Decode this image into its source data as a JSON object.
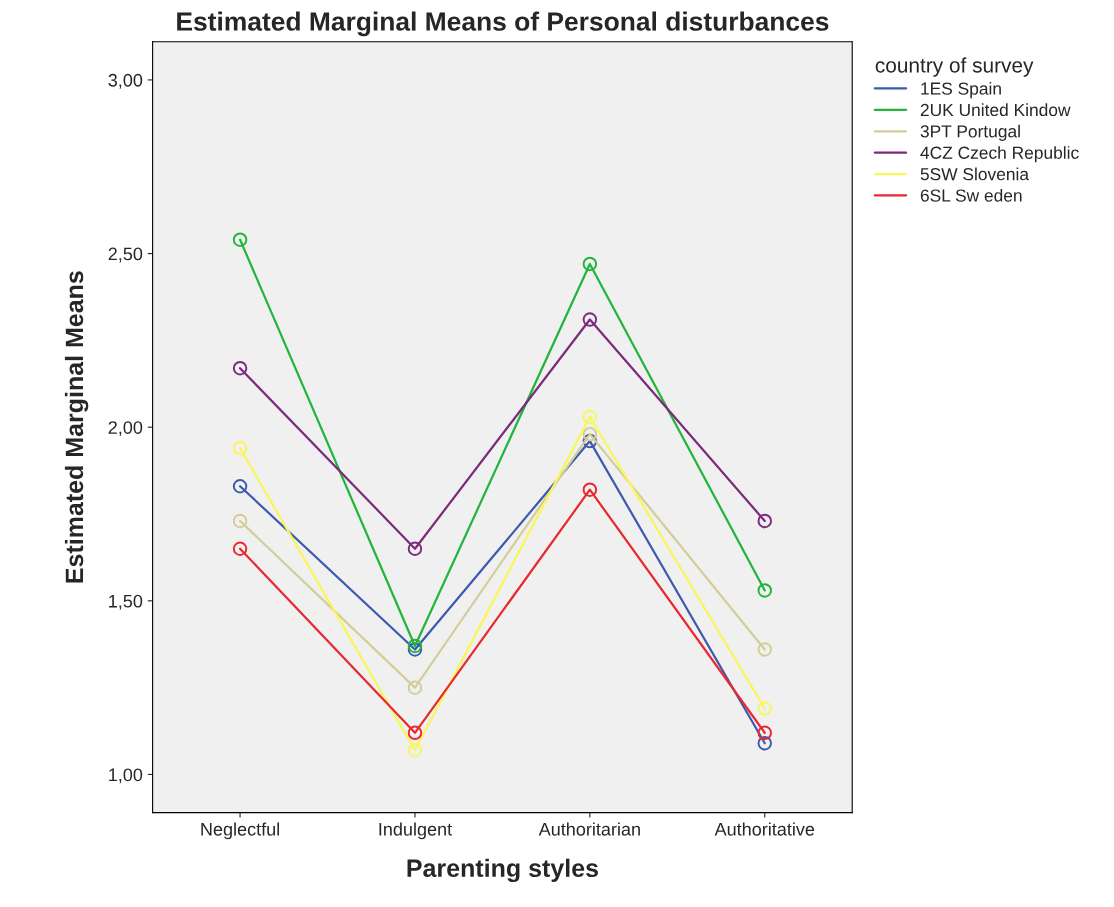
{
  "chart_data": {
    "type": "line",
    "title": "Estimated Marginal Means of Personal disturbances",
    "xlabel": "Parenting styles",
    "ylabel": "Estimated Marginal Means",
    "legend_title": "country of survey",
    "categories": [
      "Neglectful",
      "Indulgent",
      "Authoritarian",
      "Authoritative"
    ],
    "series": [
      {
        "name": "1ES Spain",
        "color": "#3d5aae",
        "values": [
          1.83,
          1.36,
          1.96,
          1.09
        ]
      },
      {
        "name": "2UK United Kindow",
        "color": "#21b53a",
        "values": [
          2.54,
          1.37,
          2.47,
          1.53
        ]
      },
      {
        "name": "3PT Portugal",
        "color": "#d3ce97",
        "values": [
          1.73,
          1.25,
          1.98,
          1.36
        ]
      },
      {
        "name": "4CZ Czech Republic",
        "color": "#7c2a7c",
        "values": [
          2.17,
          1.65,
          2.31,
          1.73
        ]
      },
      {
        "name": "5SW Slovenia",
        "color": "#f8f659",
        "values": [
          1.94,
          1.07,
          2.03,
          1.19
        ]
      },
      {
        "name": "6SL Sw eden",
        "color": "#e8292f",
        "values": [
          1.65,
          1.12,
          1.82,
          1.12
        ]
      }
    ],
    "ylim": [
      0.89,
      3.11
    ],
    "yticks": [
      {
        "value": 1,
        "label": "1,00"
      },
      {
        "value": 1.5,
        "label": "1,50"
      },
      {
        "value": 2,
        "label": "2,00"
      },
      {
        "value": 2.5,
        "label": "2,50"
      },
      {
        "value": 3,
        "label": "3,00"
      }
    ],
    "marker": "circle",
    "line_style": "solid",
    "grid": false,
    "legend": "top right"
  }
}
